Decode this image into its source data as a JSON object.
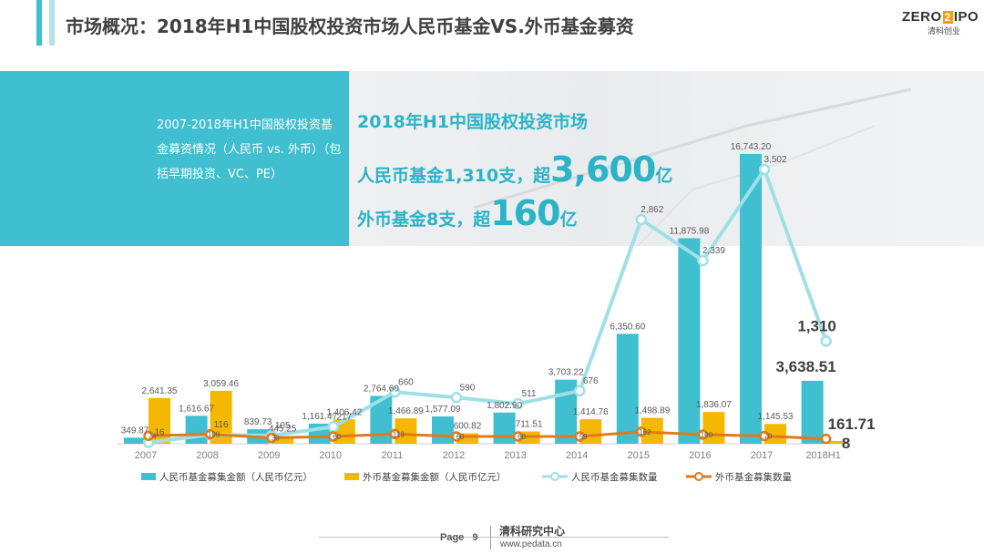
{
  "header": {
    "title": "市场概况：2018年H1中国股权投资市场人民币基金VS.外币基金募资",
    "accent_color": "#3fbfcf"
  },
  "logo": {
    "brand_left": "ZERO",
    "brand_box": "2",
    "brand_right": "IPO",
    "sub": "清科创业"
  },
  "panel": {
    "description": "2007-2018年H1中国股权投资基金募资情况（人民币 vs. 外币）（包括早期投资、VC、PE）"
  },
  "headline": {
    "line1": "2018年H1中国股权投资市场",
    "line2_prefix": "人民币基金1,310支，超",
    "line2_big": "3,600",
    "line2_suffix": "亿",
    "line3_prefix": "外币基金8支，超",
    "line3_big": "160",
    "line3_suffix": "亿"
  },
  "footer": {
    "page_label": "Page",
    "page_number": "9",
    "org": "清科研究中心",
    "url": "www.pedata.cn"
  },
  "chart_data": {
    "type": "bar",
    "categories": [
      "2007",
      "2008",
      "2009",
      "2010",
      "2011",
      "2012",
      "2013",
      "2014",
      "2015",
      "2016",
      "2017",
      "2018H1"
    ],
    "series": [
      {
        "name": "人民币基金募集金额（人民币亿元）",
        "kind": "bar",
        "color": "#3fbfcf",
        "values": [
          349.87,
          1616.67,
          839.73,
          1161.47,
          2764.6,
          1577.09,
          1802.9,
          3703.22,
          6350.6,
          11875.98,
          16743.2,
          3638.51
        ],
        "labels": [
          "349.87",
          "1,616.67",
          "839.73",
          "1,161.47",
          "2,764.60",
          "1,577.09",
          "1,802.90",
          "3,703.22",
          "6,350.60",
          "11,875.98",
          "16,743.20",
          "3,638.51"
        ]
      },
      {
        "name": "外币基金募集金额（人民币亿元）",
        "kind": "bar",
        "color": "#f5b800",
        "values": [
          2641.35,
          3059.46,
          445.25,
          1406.42,
          1466.89,
          600.82,
          711.51,
          1414.76,
          1498.89,
          1836.07,
          1145.53,
          161.71
        ],
        "labels": [
          "2,641.35",
          "3,059.46",
          "445.25",
          "1,406.42",
          "1,466.89",
          "600.82",
          "711.51",
          "1,414.76",
          "1,498.89",
          "1,836.07",
          "1,145.53",
          "161.71"
        ]
      },
      {
        "name": "人民币基金募集数量",
        "kind": "line",
        "color": "#9fe0e6",
        "values": [
          16,
          116,
          105,
          217,
          660,
          590,
          511,
          676,
          2862,
          2339,
          3502,
          1310
        ],
        "labels": [
          "16",
          "116",
          "105",
          "217",
          "660",
          "590",
          "511",
          "676",
          "2,862",
          "2,339",
          "3,502",
          "1,310"
        ]
      },
      {
        "name": "外币基金募集数量",
        "kind": "line",
        "color": "#e07a1a",
        "values": [
          74,
          108,
          30,
          60,
          113,
          60,
          60,
          59,
          162,
          100,
          70,
          8
        ],
        "labels": [
          "74",
          "108",
          "30",
          "60",
          "113",
          "60",
          "60",
          "59",
          "162",
          "100",
          "70",
          "8"
        ]
      }
    ],
    "emphasized_labels": {
      "rmb_count_last": "1,310",
      "rmb_amount_last": "3,638.51",
      "fx_amount_last": "161.71",
      "fx_count_last": "8"
    },
    "legend_position": "bottom",
    "grid": false
  }
}
